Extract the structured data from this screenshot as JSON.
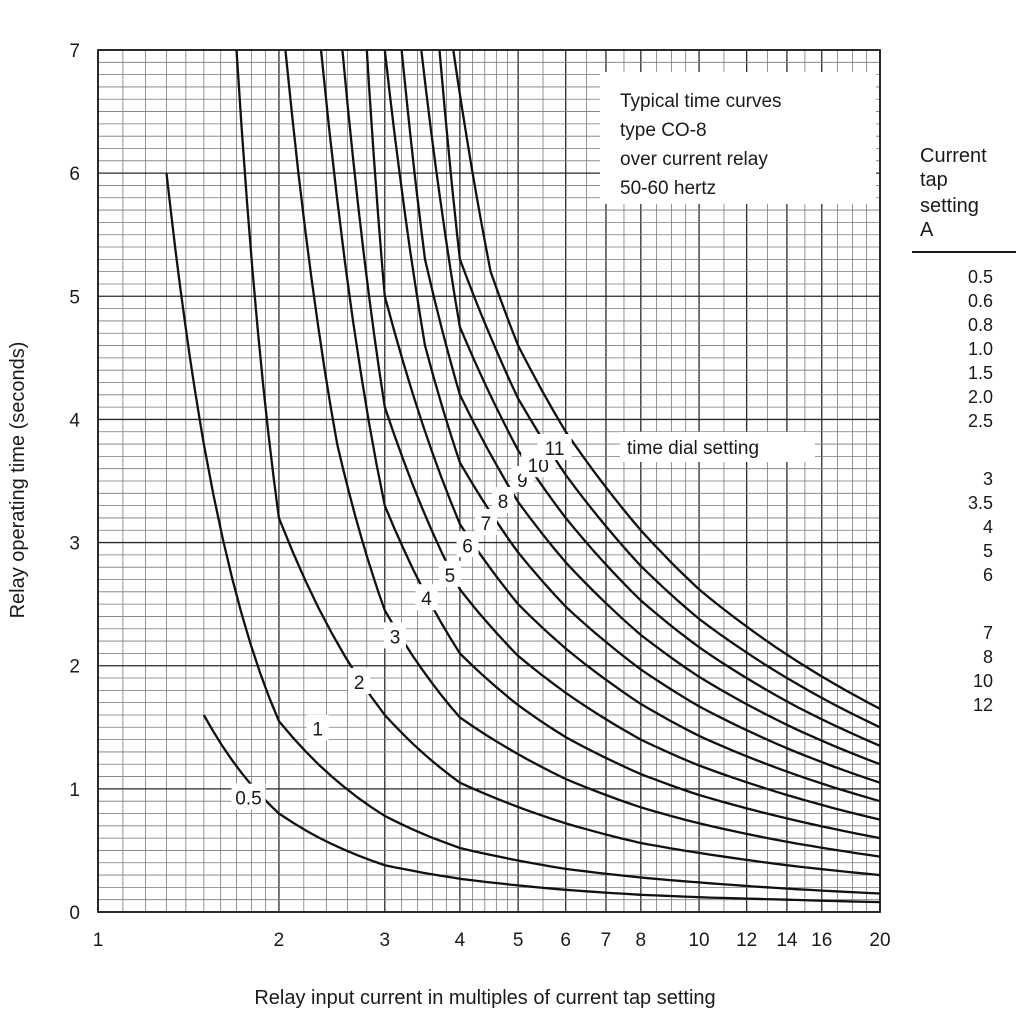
{
  "chart_data": {
    "type": "line",
    "title_lines": [
      "Typical time curves",
      "type CO-8",
      "over current relay",
      "50-60 hertz"
    ],
    "xlabel": "Relay input current in multiples of current tap setting",
    "ylabel": "Relay operating time (seconds)",
    "x_scale": "log",
    "xlim": [
      1,
      20
    ],
    "ylim": [
      0,
      7
    ],
    "grid": true,
    "x_ticks": [
      {
        "value": 1,
        "label": "1"
      },
      {
        "value": 2,
        "label": "2"
      },
      {
        "value": 3,
        "label": "3"
      },
      {
        "value": 4,
        "label": "4"
      },
      {
        "value": 5,
        "label": "5"
      },
      {
        "value": 6,
        "label": "6"
      },
      {
        "value": 7,
        "label": "7"
      },
      {
        "value": 8,
        "label": "8"
      },
      {
        "value": 10,
        "label": "10"
      },
      {
        "value": 12,
        "label": "12"
      },
      {
        "value": 14,
        "label": "14"
      },
      {
        "value": 16,
        "label": "16"
      },
      {
        "value": 20,
        "label": "20"
      }
    ],
    "y_ticks": [
      {
        "value": 0,
        "label": "0"
      },
      {
        "value": 1,
        "label": "1"
      },
      {
        "value": 2,
        "label": "2"
      },
      {
        "value": 3,
        "label": "3"
      },
      {
        "value": 4,
        "label": "4"
      },
      {
        "value": 5,
        "label": "5"
      },
      {
        "value": 6,
        "label": "6"
      },
      {
        "value": 7,
        "label": "7"
      }
    ],
    "curve_annotation": "time dial setting",
    "series": [
      {
        "name": "0.5",
        "x": [
          1.5,
          2,
          3,
          4,
          6,
          8,
          10,
          14,
          20
        ],
        "y": [
          1.6,
          0.8,
          0.38,
          0.27,
          0.18,
          0.14,
          0.12,
          0.1,
          0.08
        ]
      },
      {
        "name": "1",
        "x": [
          1.3,
          1.5,
          2,
          3,
          4,
          6,
          8,
          10,
          14,
          20
        ],
        "y": [
          6.0,
          3.8,
          1.55,
          0.78,
          0.52,
          0.35,
          0.28,
          0.24,
          0.19,
          0.15
        ]
      },
      {
        "name": "2",
        "x": [
          1.7,
          2,
          3,
          4,
          6,
          8,
          10,
          14,
          20
        ],
        "y": [
          7.0,
          3.2,
          1.6,
          1.05,
          0.72,
          0.56,
          0.48,
          0.38,
          0.3
        ]
      },
      {
        "name": "3",
        "x": [
          2.05,
          2.5,
          3,
          4,
          6,
          8,
          10,
          14,
          20
        ],
        "y": [
          7.0,
          3.8,
          2.45,
          1.58,
          1.08,
          0.85,
          0.72,
          0.57,
          0.45
        ]
      },
      {
        "name": "4",
        "x": [
          2.35,
          3,
          4,
          5,
          6,
          8,
          10,
          14,
          20
        ],
        "y": [
          7.0,
          3.3,
          2.1,
          1.68,
          1.42,
          1.12,
          0.95,
          0.76,
          0.6
        ]
      },
      {
        "name": "5",
        "x": [
          2.55,
          3,
          4,
          5,
          6,
          8,
          10,
          14,
          20
        ],
        "y": [
          7.0,
          4.1,
          2.62,
          2.08,
          1.78,
          1.4,
          1.19,
          0.95,
          0.75
        ]
      },
      {
        "name": "6",
        "x": [
          2.8,
          3,
          4,
          5,
          6,
          8,
          10,
          14,
          20
        ],
        "y": [
          7.0,
          5.0,
          3.15,
          2.5,
          2.14,
          1.69,
          1.43,
          1.14,
          0.9
        ]
      },
      {
        "name": "7",
        "x": [
          3.0,
          3.5,
          4,
          5,
          6,
          8,
          10,
          14,
          20
        ],
        "y": [
          7.0,
          4.6,
          3.65,
          2.92,
          2.48,
          1.97,
          1.67,
          1.33,
          1.05
        ]
      },
      {
        "name": "8",
        "x": [
          3.2,
          3.5,
          4,
          5,
          6,
          8,
          10,
          14,
          20
        ],
        "y": [
          7.0,
          5.3,
          4.2,
          3.33,
          2.84,
          2.25,
          1.91,
          1.52,
          1.2
        ]
      },
      {
        "name": "9",
        "x": [
          3.45,
          4,
          5,
          6,
          8,
          10,
          14,
          20
        ],
        "y": [
          7.0,
          4.75,
          3.75,
          3.2,
          2.53,
          2.15,
          1.71,
          1.35
        ]
      },
      {
        "name": "10",
        "x": [
          3.7,
          4,
          5,
          6,
          8,
          10,
          14,
          20
        ],
        "y": [
          7.0,
          5.3,
          4.17,
          3.55,
          2.81,
          2.38,
          1.9,
          1.5
        ]
      },
      {
        "name": "11",
        "x": [
          3.9,
          4.5,
          5,
          6,
          8,
          10,
          14,
          20
        ],
        "y": [
          7.0,
          5.2,
          4.6,
          3.9,
          3.1,
          2.62,
          2.09,
          1.65
        ]
      }
    ],
    "current_tap_table": {
      "header": [
        "Current",
        "tap",
        "setting",
        "A"
      ],
      "groups": [
        [
          "0.5",
          "0.6",
          "0.8",
          "1.0",
          "1.5",
          "2.0",
          "2.5"
        ],
        [
          "3",
          "3.5",
          "4",
          "5",
          "6"
        ],
        [
          "7",
          "8",
          "10",
          "12"
        ]
      ]
    }
  }
}
